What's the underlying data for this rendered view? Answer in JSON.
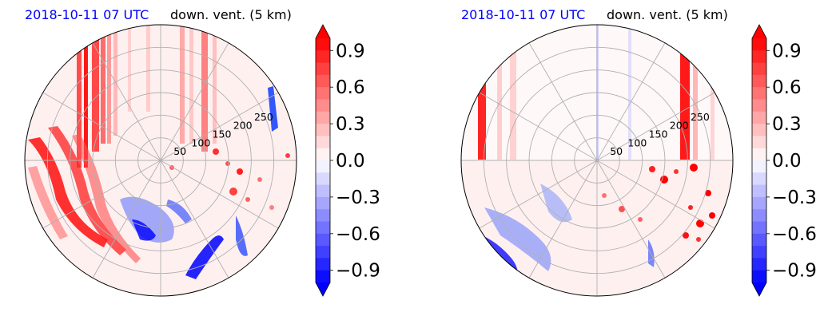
{
  "chart_data": [
    {
      "type": "heatmap",
      "projection": "polar",
      "title_date": "2018-10-11 07 UTC",
      "title_field": "down. vent. (5 km)",
      "radial_ticks": [
        "50",
        "100",
        "150",
        "200",
        "250"
      ],
      "radial_tick_values": [
        50,
        100,
        150,
        200,
        250
      ],
      "rmax": 300,
      "grid": true,
      "colorbar": {
        "ticks": [
          "0.9",
          "0.6",
          "0.3",
          "0.0",
          "−0.3",
          "−0.6",
          "−0.9"
        ],
        "tick_values": [
          0.9,
          0.6,
          0.3,
          0.0,
          -0.3,
          -0.6,
          -0.9
        ],
        "vmin": -1.0,
        "vmax": 1.0,
        "levels": 20,
        "extend": "both",
        "cmap": "bwr"
      }
    },
    {
      "type": "heatmap",
      "projection": "polar",
      "title_date": "2018-10-11 07 UTC",
      "title_field": "down. vent. (5 km)",
      "radial_ticks": [
        "50",
        "100",
        "150",
        "200",
        "250"
      ],
      "radial_tick_values": [
        50,
        100,
        150,
        200,
        250
      ],
      "rmax": 300,
      "grid": true,
      "colorbar": {
        "ticks": [
          "0.9",
          "0.6",
          "0.3",
          "0.0",
          "−0.3",
          "−0.6",
          "−0.9"
        ],
        "tick_values": [
          0.9,
          0.6,
          0.3,
          0.0,
          -0.3,
          -0.6,
          -0.9
        ],
        "vmin": -1.0,
        "vmax": 1.0,
        "levels": 20,
        "extend": "both",
        "cmap": "bwr"
      }
    }
  ]
}
